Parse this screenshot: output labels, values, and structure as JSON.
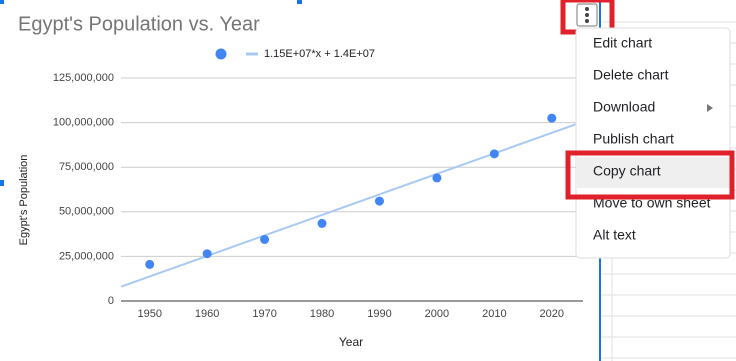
{
  "chart_data": {
    "type": "scatter",
    "title": "Egypt's Population vs. Year",
    "x_label": "Year",
    "y_label": "Egypt's Population",
    "x": [
      1950,
      1960,
      1970,
      1980,
      1990,
      2000,
      2010,
      2020
    ],
    "series": [
      {
        "color": "#4285f4",
        "values": [
          20500000,
          26500000,
          34500000,
          43500000,
          56000000,
          69000000,
          82500000,
          102500000
        ]
      }
    ],
    "trendline": {
      "name": "1.15E+07*x + 1.4E+07",
      "color": "#a9c9f4",
      "x": [
        1945,
        2025
      ],
      "values": [
        8000000,
        100000000
      ]
    },
    "xlim": [
      1945,
      2025
    ],
    "xticks": [
      1950,
      1960,
      1970,
      1980,
      1990,
      2000,
      2010,
      2020
    ],
    "ylim": [
      0,
      125000000
    ],
    "yticks": [
      0,
      {
        "value": 25000000,
        "label": "25,000,000"
      },
      {
        "value": 50000000,
        "label": "50,000,000"
      },
      {
        "value": 75000000,
        "label": "75,000,000"
      },
      {
        "value": 100000000,
        "label": "100,000,000"
      },
      {
        "value": 125000000,
        "label": "125,000,000"
      }
    ],
    "grid": true
  },
  "menu": {
    "items": [
      "Edit chart",
      "Delete chart",
      "Download",
      "Publish chart",
      "Copy chart",
      "Move to own sheet",
      "Alt text"
    ]
  }
}
